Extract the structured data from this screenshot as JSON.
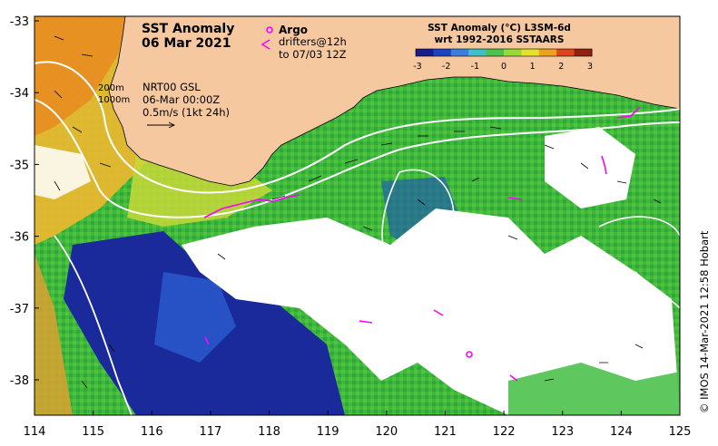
{
  "map": {
    "title_line1": "SST Anomaly",
    "title_line2": "06 Mar 2021",
    "legend": {
      "argo_label": "Argo",
      "drifters_label": "drifters@12h",
      "drifters_time": "to 07/03 12Z",
      "depth_200": "200m",
      "depth_1000": "1000m",
      "nrt_label": "NRT00 GSL",
      "nrt_time": "06-Mar 00:00Z",
      "scale_label": "0.5m/s (1kt 24h)"
    },
    "colorbar": {
      "title_line1": "SST Anomaly (°C) L3SM-6d",
      "title_line2": "wrt 1992-2016 SSTAARS",
      "ticks": [
        "-3",
        "-2",
        "-1",
        "0",
        "1",
        "2",
        "3"
      ],
      "colors": [
        "#1a1a8c",
        "#2040c8",
        "#3a7ee0",
        "#3ec0c8",
        "#4cc24c",
        "#9ad83a",
        "#e4e030",
        "#f0a020",
        "#d84818",
        "#902010"
      ]
    },
    "x_ticks": [
      "114",
      "115",
      "116",
      "117",
      "118",
      "119",
      "120",
      "121",
      "122",
      "123",
      "124",
      "125"
    ],
    "y_ticks": [
      "-33",
      "-34",
      "-35",
      "-36",
      "-37",
      "-38"
    ],
    "credit": "© IMOS 14-Mar-2021 12:58 Hobart",
    "colors": {
      "land": "#f5c8a0",
      "cloud": "#ffffff",
      "argo": "#ff00ff",
      "contour": "#ffffff"
    }
  }
}
